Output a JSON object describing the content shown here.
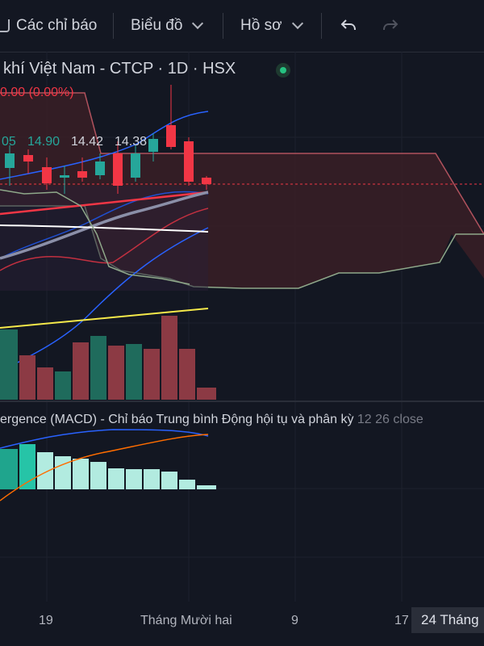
{
  "toolbar": {
    "indicators_label": "Các chỉ báo",
    "chart_label": "Biểu đồ",
    "profile_label": "Hồ sơ"
  },
  "symbol": {
    "title": "khí Việt Nam - CTCP · 1D · HSX",
    "change": "0.00 (0.00%)",
    "ohlc_values": [
      "05",
      "14.90",
      "14.42",
      "14.38"
    ]
  },
  "macd": {
    "label": "ergence (MACD) - Chỉ báo Trung bình Động hội tụ và phân kỳ",
    "params": "12 26 close"
  },
  "time_axis": {
    "labels": [
      "19",
      "Tháng Mười hai",
      "9",
      "17"
    ],
    "crosshair_date": "24 Tháng"
  },
  "colors": {
    "up": "#26a69a",
    "down": "#f23645",
    "background": "#131722"
  }
}
